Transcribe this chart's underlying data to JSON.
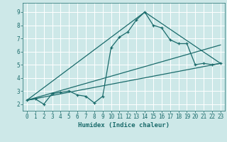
{
  "xlabel": "Humidex (Indice chaleur)",
  "bg_color": "#cde8e8",
  "grid_color": "#ffffff",
  "line_color": "#1a6b6b",
  "xlim": [
    -0.5,
    23.5
  ],
  "ylim": [
    1.5,
    9.7
  ],
  "xticks": [
    0,
    1,
    2,
    3,
    4,
    5,
    6,
    7,
    8,
    9,
    10,
    11,
    12,
    13,
    14,
    15,
    16,
    17,
    18,
    19,
    20,
    21,
    22,
    23
  ],
  "yticks": [
    2,
    3,
    4,
    5,
    6,
    7,
    8,
    9
  ],
  "main_x": [
    0,
    1,
    2,
    3,
    4,
    5,
    6,
    7,
    8,
    9,
    10,
    11,
    12,
    13,
    14,
    15,
    16,
    17,
    18,
    19,
    20,
    21,
    22,
    23
  ],
  "main_y": [
    2.3,
    2.4,
    2.0,
    2.8,
    2.9,
    3.0,
    2.7,
    2.6,
    2.1,
    2.6,
    6.3,
    7.1,
    7.5,
    8.4,
    9.0,
    8.0,
    7.8,
    6.9,
    6.6,
    6.6,
    5.0,
    5.1,
    5.0,
    5.1
  ],
  "line2_x": [
    0,
    23
  ],
  "line2_y": [
    2.3,
    5.1
  ],
  "line3_x": [
    0,
    14,
    23
  ],
  "line3_y": [
    2.3,
    9.0,
    5.1
  ],
  "line4_x": [
    0,
    23
  ],
  "line4_y": [
    2.3,
    6.5
  ]
}
